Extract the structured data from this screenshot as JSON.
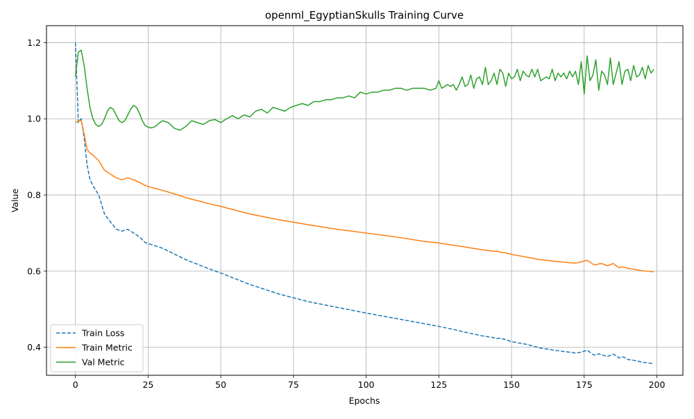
{
  "chart_data": {
    "type": "line",
    "title": "openml_EgyptianSkulls Training Curve",
    "xlabel": "Epochs",
    "ylabel": "Value",
    "xlim": [
      -9.95,
      208.95
    ],
    "ylim": [
      0.3265,
      1.2445
    ],
    "xticks": [
      0,
      25,
      50,
      75,
      100,
      125,
      150,
      175,
      200
    ],
    "yticks": [
      0.4,
      0.6,
      0.8,
      1.0,
      1.2
    ],
    "xtick_labels": [
      "0",
      "25",
      "50",
      "75",
      "100",
      "125",
      "150",
      "175",
      "200"
    ],
    "ytick_labels": [
      "0.4",
      "0.6",
      "0.8",
      "1.0",
      "1.2"
    ],
    "grid": true,
    "legend_position": "lower left",
    "series": [
      {
        "name": "Train Loss",
        "color": "#1f77b4",
        "style": "dashed",
        "x": [
          0,
          1,
          2,
          3,
          4,
          5,
          6,
          8,
          10,
          12,
          14,
          16,
          18,
          20,
          22,
          24,
          26,
          28,
          30,
          34,
          38,
          42,
          46,
          50,
          60,
          70,
          80,
          90,
          100,
          110,
          120,
          125,
          130,
          135,
          140,
          144,
          145,
          146,
          148,
          150,
          155,
          160,
          165,
          170,
          172,
          174,
          175,
          176,
          177,
          178,
          179,
          180,
          181,
          182,
          183,
          184,
          185,
          186,
          187,
          188,
          189,
          190,
          192,
          195,
          199
        ],
        "y": [
          1.2,
          0.99,
          1.0,
          0.95,
          0.88,
          0.84,
          0.825,
          0.8,
          0.75,
          0.73,
          0.71,
          0.705,
          0.71,
          0.7,
          0.69,
          0.675,
          0.67,
          0.665,
          0.66,
          0.645,
          0.63,
          0.618,
          0.606,
          0.595,
          0.565,
          0.54,
          0.52,
          0.505,
          0.49,
          0.476,
          0.462,
          0.455,
          0.447,
          0.438,
          0.43,
          0.425,
          0.423,
          0.424,
          0.42,
          0.415,
          0.408,
          0.398,
          0.392,
          0.387,
          0.385,
          0.387,
          0.39,
          0.392,
          0.387,
          0.381,
          0.379,
          0.383,
          0.381,
          0.378,
          0.376,
          0.379,
          0.382,
          0.378,
          0.372,
          0.375,
          0.373,
          0.368,
          0.366,
          0.361,
          0.357
        ]
      },
      {
        "name": "Train Metric",
        "color": "#ff7f0e",
        "style": "solid",
        "x": [
          0,
          1,
          2,
          3,
          4,
          5,
          6,
          8,
          10,
          12,
          14,
          16,
          18,
          20,
          22,
          24,
          26,
          28,
          30,
          34,
          38,
          42,
          46,
          50,
          60,
          70,
          80,
          90,
          100,
          110,
          120,
          125,
          130,
          135,
          140,
          144,
          145,
          146,
          148,
          150,
          155,
          160,
          165,
          170,
          172,
          174,
          175,
          176,
          177,
          178,
          179,
          180,
          181,
          182,
          183,
          184,
          185,
          186,
          187,
          188,
          189,
          190,
          192,
          195,
          199
        ],
        "y": [
          0.99,
          0.995,
          0.995,
          0.96,
          0.92,
          0.91,
          0.905,
          0.89,
          0.865,
          0.855,
          0.845,
          0.84,
          0.845,
          0.84,
          0.833,
          0.825,
          0.82,
          0.816,
          0.812,
          0.803,
          0.793,
          0.785,
          0.777,
          0.77,
          0.75,
          0.735,
          0.722,
          0.71,
          0.7,
          0.69,
          0.678,
          0.674,
          0.668,
          0.662,
          0.656,
          0.652,
          0.653,
          0.65,
          0.648,
          0.644,
          0.637,
          0.63,
          0.626,
          0.622,
          0.621,
          0.624,
          0.627,
          0.628,
          0.624,
          0.618,
          0.616,
          0.619,
          0.62,
          0.617,
          0.614,
          0.617,
          0.62,
          0.614,
          0.609,
          0.611,
          0.61,
          0.607,
          0.605,
          0.601,
          0.598
        ]
      },
      {
        "name": "Val Metric",
        "color": "#2ca02c",
        "style": "solid",
        "x": [
          0,
          1,
          2,
          3,
          4,
          5,
          6,
          7,
          8,
          9,
          10,
          11,
          12,
          13,
          14,
          15,
          16,
          17,
          18,
          19,
          20,
          21,
          22,
          23,
          24,
          25,
          26,
          27,
          28,
          29,
          30,
          32,
          34,
          36,
          38,
          40,
          42,
          44,
          46,
          48,
          50,
          52,
          54,
          56,
          58,
          60,
          62,
          64,
          66,
          68,
          70,
          72,
          74,
          76,
          78,
          80,
          82,
          84,
          86,
          88,
          90,
          92,
          94,
          96,
          98,
          100,
          102,
          104,
          106,
          108,
          110,
          112,
          114,
          116,
          118,
          120,
          122,
          124,
          125,
          126,
          127,
          128,
          129,
          130,
          131,
          132,
          133,
          134,
          135,
          136,
          137,
          138,
          139,
          140,
          141,
          142,
          143,
          144,
          145,
          146,
          147,
          148,
          149,
          150,
          151,
          152,
          153,
          154,
          155,
          156,
          157,
          158,
          159,
          160,
          161,
          162,
          163,
          164,
          165,
          166,
          167,
          168,
          169,
          170,
          171,
          172,
          173,
          174,
          175,
          176,
          177,
          178,
          179,
          180,
          181,
          182,
          183,
          184,
          185,
          186,
          187,
          188,
          189,
          190,
          191,
          192,
          193,
          194,
          195,
          196,
          197,
          198,
          199
        ],
        "y": [
          1.11,
          1.175,
          1.18,
          1.14,
          1.08,
          1.03,
          1.0,
          0.985,
          0.98,
          0.985,
          1.0,
          1.02,
          1.03,
          1.025,
          1.01,
          0.995,
          0.99,
          0.995,
          1.01,
          1.025,
          1.035,
          1.03,
          1.015,
          0.995,
          0.982,
          0.978,
          0.976,
          0.978,
          0.983,
          0.99,
          0.995,
          0.99,
          0.975,
          0.97,
          0.98,
          0.995,
          0.99,
          0.985,
          0.995,
          0.998,
          0.99,
          1.0,
          1.008,
          1.0,
          1.01,
          1.005,
          1.02,
          1.025,
          1.015,
          1.03,
          1.025,
          1.02,
          1.03,
          1.035,
          1.04,
          1.035,
          1.045,
          1.045,
          1.05,
          1.05,
          1.055,
          1.055,
          1.06,
          1.055,
          1.07,
          1.065,
          1.07,
          1.07,
          1.075,
          1.075,
          1.08,
          1.08,
          1.075,
          1.08,
          1.08,
          1.08,
          1.075,
          1.08,
          1.1,
          1.08,
          1.085,
          1.09,
          1.085,
          1.09,
          1.075,
          1.09,
          1.11,
          1.085,
          1.09,
          1.115,
          1.08,
          1.105,
          1.11,
          1.09,
          1.135,
          1.09,
          1.1,
          1.12,
          1.09,
          1.13,
          1.12,
          1.085,
          1.12,
          1.105,
          1.11,
          1.13,
          1.1,
          1.125,
          1.115,
          1.11,
          1.13,
          1.11,
          1.13,
          1.1,
          1.105,
          1.11,
          1.105,
          1.13,
          1.1,
          1.12,
          1.11,
          1.12,
          1.105,
          1.125,
          1.11,
          1.125,
          1.09,
          1.15,
          1.065,
          1.165,
          1.1,
          1.115,
          1.155,
          1.075,
          1.125,
          1.115,
          1.09,
          1.16,
          1.09,
          1.12,
          1.15,
          1.09,
          1.125,
          1.13,
          1.1,
          1.14,
          1.11,
          1.115,
          1.135,
          1.105,
          1.14,
          1.12,
          1.13
        ]
      }
    ]
  }
}
